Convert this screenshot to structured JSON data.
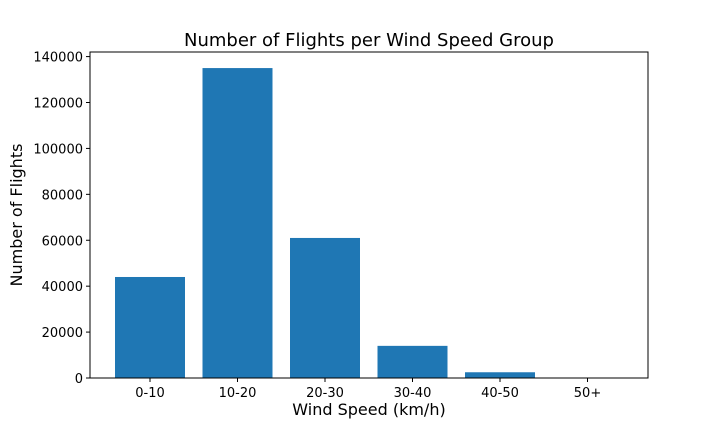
{
  "chart_data": {
    "type": "bar",
    "title": "Number of Flights per Wind Speed Group",
    "xlabel": "Wind Speed (km/h)",
    "ylabel": "Number of Flights",
    "categories": [
      "0-10",
      "10-20",
      "20-30",
      "30-40",
      "40-50",
      "50+"
    ],
    "values": [
      44000,
      135000,
      61000,
      14000,
      2500,
      150
    ],
    "ylim": [
      0,
      142000
    ],
    "yticks": [
      0,
      20000,
      40000,
      60000,
      80000,
      100000,
      120000,
      140000
    ],
    "bar_color": "#1f77b4",
    "grid": false
  }
}
